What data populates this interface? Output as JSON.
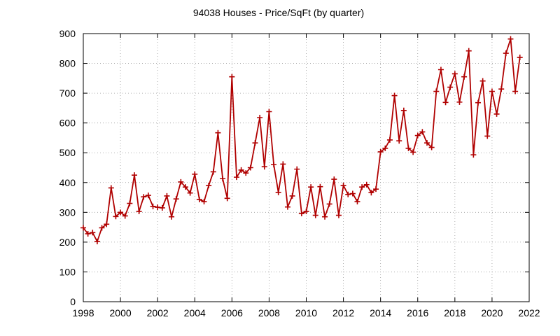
{
  "chart_data": {
    "type": "line",
    "title": "94038 Houses - Price/SqFt (by quarter)",
    "xlabel": "",
    "ylabel": "",
    "xlim": [
      1998,
      2022
    ],
    "ylim": [
      0,
      900
    ],
    "x_ticks": [
      1998,
      2000,
      2002,
      2004,
      2006,
      2008,
      2010,
      2012,
      2014,
      2016,
      2018,
      2020,
      2022
    ],
    "y_ticks": [
      0,
      100,
      200,
      300,
      400,
      500,
      600,
      700,
      800,
      900
    ],
    "grid": true,
    "legend": "none",
    "line_color": "#b00000",
    "series": [
      {
        "x": [
          1998.0,
          1998.25,
          1998.5,
          1998.75,
          1999.0,
          1999.25,
          1999.5,
          1999.75,
          2000.0,
          2000.25,
          2000.5,
          2000.75,
          2001.0,
          2001.25,
          2001.5,
          2001.75,
          2002.0,
          2002.25,
          2002.5,
          2002.75,
          2003.0,
          2003.25,
          2003.5,
          2003.75,
          2004.0,
          2004.25,
          2004.5,
          2004.75,
          2005.0,
          2005.25,
          2005.5,
          2005.75,
          2006.0,
          2006.25,
          2006.5,
          2006.75,
          2007.0,
          2007.25,
          2007.5,
          2007.75,
          2008.0,
          2008.25,
          2008.5,
          2008.75,
          2009.0,
          2009.25,
          2009.5,
          2009.75,
          2010.0,
          2010.25,
          2010.5,
          2010.75,
          2011.0,
          2011.25,
          2011.5,
          2011.75,
          2012.0,
          2012.25,
          2012.5,
          2012.75,
          2013.0,
          2013.25,
          2013.5,
          2013.75,
          2014.0,
          2014.25,
          2014.5,
          2014.75,
          2015.0,
          2015.25,
          2015.5,
          2015.75,
          2016.0,
          2016.25,
          2016.5,
          2016.75,
          2017.0,
          2017.25,
          2017.5,
          2017.75,
          2018.0,
          2018.25,
          2018.5,
          2018.75,
          2019.0,
          2019.25,
          2019.5,
          2019.75,
          2020.0,
          2020.25,
          2020.5,
          2020.75,
          2021.0,
          2021.25,
          2021.5
        ],
        "y": [
          248,
          228,
          232,
          202,
          248,
          260,
          382,
          286,
          300,
          288,
          330,
          425,
          303,
          352,
          357,
          320,
          317,
          315,
          355,
          285,
          345,
          402,
          385,
          365,
          428,
          343,
          336,
          390,
          436,
          567,
          413,
          347,
          755,
          418,
          442,
          432,
          450,
          533,
          618,
          453,
          638,
          460,
          367,
          462,
          318,
          355,
          445,
          296,
          303,
          385,
          290,
          386,
          285,
          328,
          411,
          290,
          390,
          360,
          363,
          336,
          385,
          393,
          366,
          378,
          503,
          515,
          543,
          692,
          540,
          642,
          515,
          502,
          558,
          570,
          533,
          518,
          706,
          779,
          669,
          720,
          765,
          670,
          755,
          842,
          493,
          668,
          741,
          556,
          706,
          630,
          714,
          834,
          882,
          706,
          820
        ]
      }
    ]
  }
}
